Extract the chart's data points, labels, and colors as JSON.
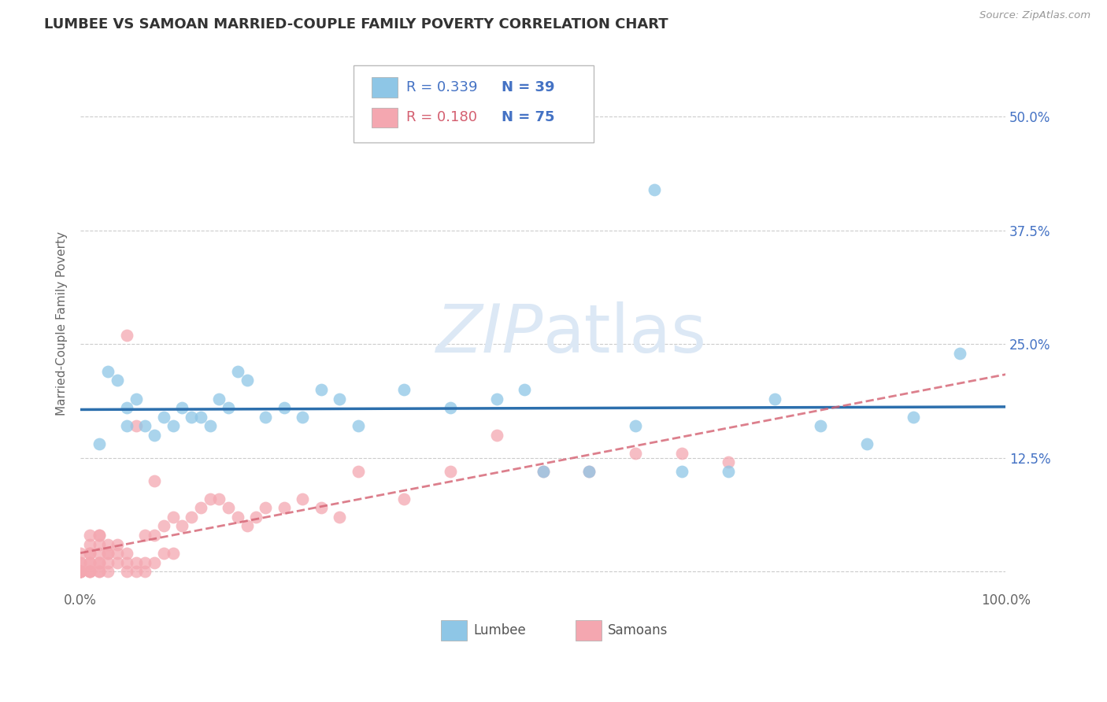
{
  "title": "LUMBEE VS SAMOAN MARRIED-COUPLE FAMILY POVERTY CORRELATION CHART",
  "source": "Source: ZipAtlas.com",
  "ylabel": "Married-Couple Family Poverty",
  "xlim": [
    0.0,
    1.0
  ],
  "ylim": [
    -0.02,
    0.565
  ],
  "xticks": [
    0.0,
    1.0
  ],
  "xtick_labels": [
    "0.0%",
    "100.0%"
  ],
  "yticks": [
    0.0,
    0.125,
    0.25,
    0.375,
    0.5
  ],
  "ytick_labels_right": [
    "",
    "12.5%",
    "25.0%",
    "37.5%",
    "50.0%"
  ],
  "lumbee_R": 0.339,
  "lumbee_N": 39,
  "samoan_R": 0.18,
  "samoan_N": 75,
  "blue_color": "#8ec6e6",
  "pink_color": "#f4a7b0",
  "blue_line_color": "#2c6fad",
  "pink_line_color": "#d45f70",
  "watermark_color": "#dce8f5",
  "lumbee_x": [
    0.02,
    0.03,
    0.04,
    0.05,
    0.05,
    0.06,
    0.07,
    0.08,
    0.09,
    0.1,
    0.11,
    0.12,
    0.13,
    0.14,
    0.15,
    0.16,
    0.17,
    0.18,
    0.2,
    0.22,
    0.24,
    0.26,
    0.28,
    0.3,
    0.35,
    0.4,
    0.45,
    0.5,
    0.55,
    0.6,
    0.62,
    0.65,
    0.7,
    0.75,
    0.8,
    0.85,
    0.9,
    0.95,
    0.48
  ],
  "lumbee_y": [
    0.14,
    0.22,
    0.21,
    0.16,
    0.18,
    0.19,
    0.16,
    0.15,
    0.17,
    0.16,
    0.18,
    0.17,
    0.17,
    0.16,
    0.19,
    0.18,
    0.22,
    0.21,
    0.17,
    0.18,
    0.17,
    0.2,
    0.19,
    0.16,
    0.2,
    0.18,
    0.19,
    0.11,
    0.11,
    0.16,
    0.42,
    0.11,
    0.11,
    0.19,
    0.16,
    0.14,
    0.17,
    0.24,
    0.2
  ],
  "samoan_x": [
    0.0,
    0.0,
    0.0,
    0.0,
    0.0,
    0.0,
    0.0,
    0.0,
    0.0,
    0.0,
    0.01,
    0.01,
    0.01,
    0.01,
    0.01,
    0.01,
    0.01,
    0.01,
    0.01,
    0.02,
    0.02,
    0.02,
    0.02,
    0.02,
    0.02,
    0.02,
    0.02,
    0.03,
    0.03,
    0.03,
    0.03,
    0.03,
    0.04,
    0.04,
    0.04,
    0.05,
    0.05,
    0.05,
    0.05,
    0.06,
    0.06,
    0.06,
    0.07,
    0.07,
    0.07,
    0.08,
    0.08,
    0.08,
    0.09,
    0.09,
    0.1,
    0.1,
    0.11,
    0.12,
    0.13,
    0.14,
    0.15,
    0.16,
    0.17,
    0.18,
    0.19,
    0.2,
    0.22,
    0.24,
    0.26,
    0.28,
    0.3,
    0.35,
    0.4,
    0.45,
    0.5,
    0.55,
    0.6,
    0.65,
    0.7
  ],
  "samoan_y": [
    0.0,
    0.0,
    0.0,
    0.0,
    0.0,
    0.0,
    0.0,
    0.01,
    0.01,
    0.02,
    0.0,
    0.0,
    0.0,
    0.01,
    0.01,
    0.02,
    0.02,
    0.03,
    0.04,
    0.0,
    0.0,
    0.01,
    0.01,
    0.02,
    0.03,
    0.04,
    0.04,
    0.0,
    0.01,
    0.02,
    0.02,
    0.03,
    0.01,
    0.02,
    0.03,
    0.0,
    0.01,
    0.26,
    0.02,
    0.0,
    0.01,
    0.16,
    0.0,
    0.01,
    0.04,
    0.01,
    0.04,
    0.1,
    0.02,
    0.05,
    0.02,
    0.06,
    0.05,
    0.06,
    0.07,
    0.08,
    0.08,
    0.07,
    0.06,
    0.05,
    0.06,
    0.07,
    0.07,
    0.08,
    0.07,
    0.06,
    0.11,
    0.08,
    0.11,
    0.15,
    0.11,
    0.11,
    0.13,
    0.13,
    0.12
  ]
}
